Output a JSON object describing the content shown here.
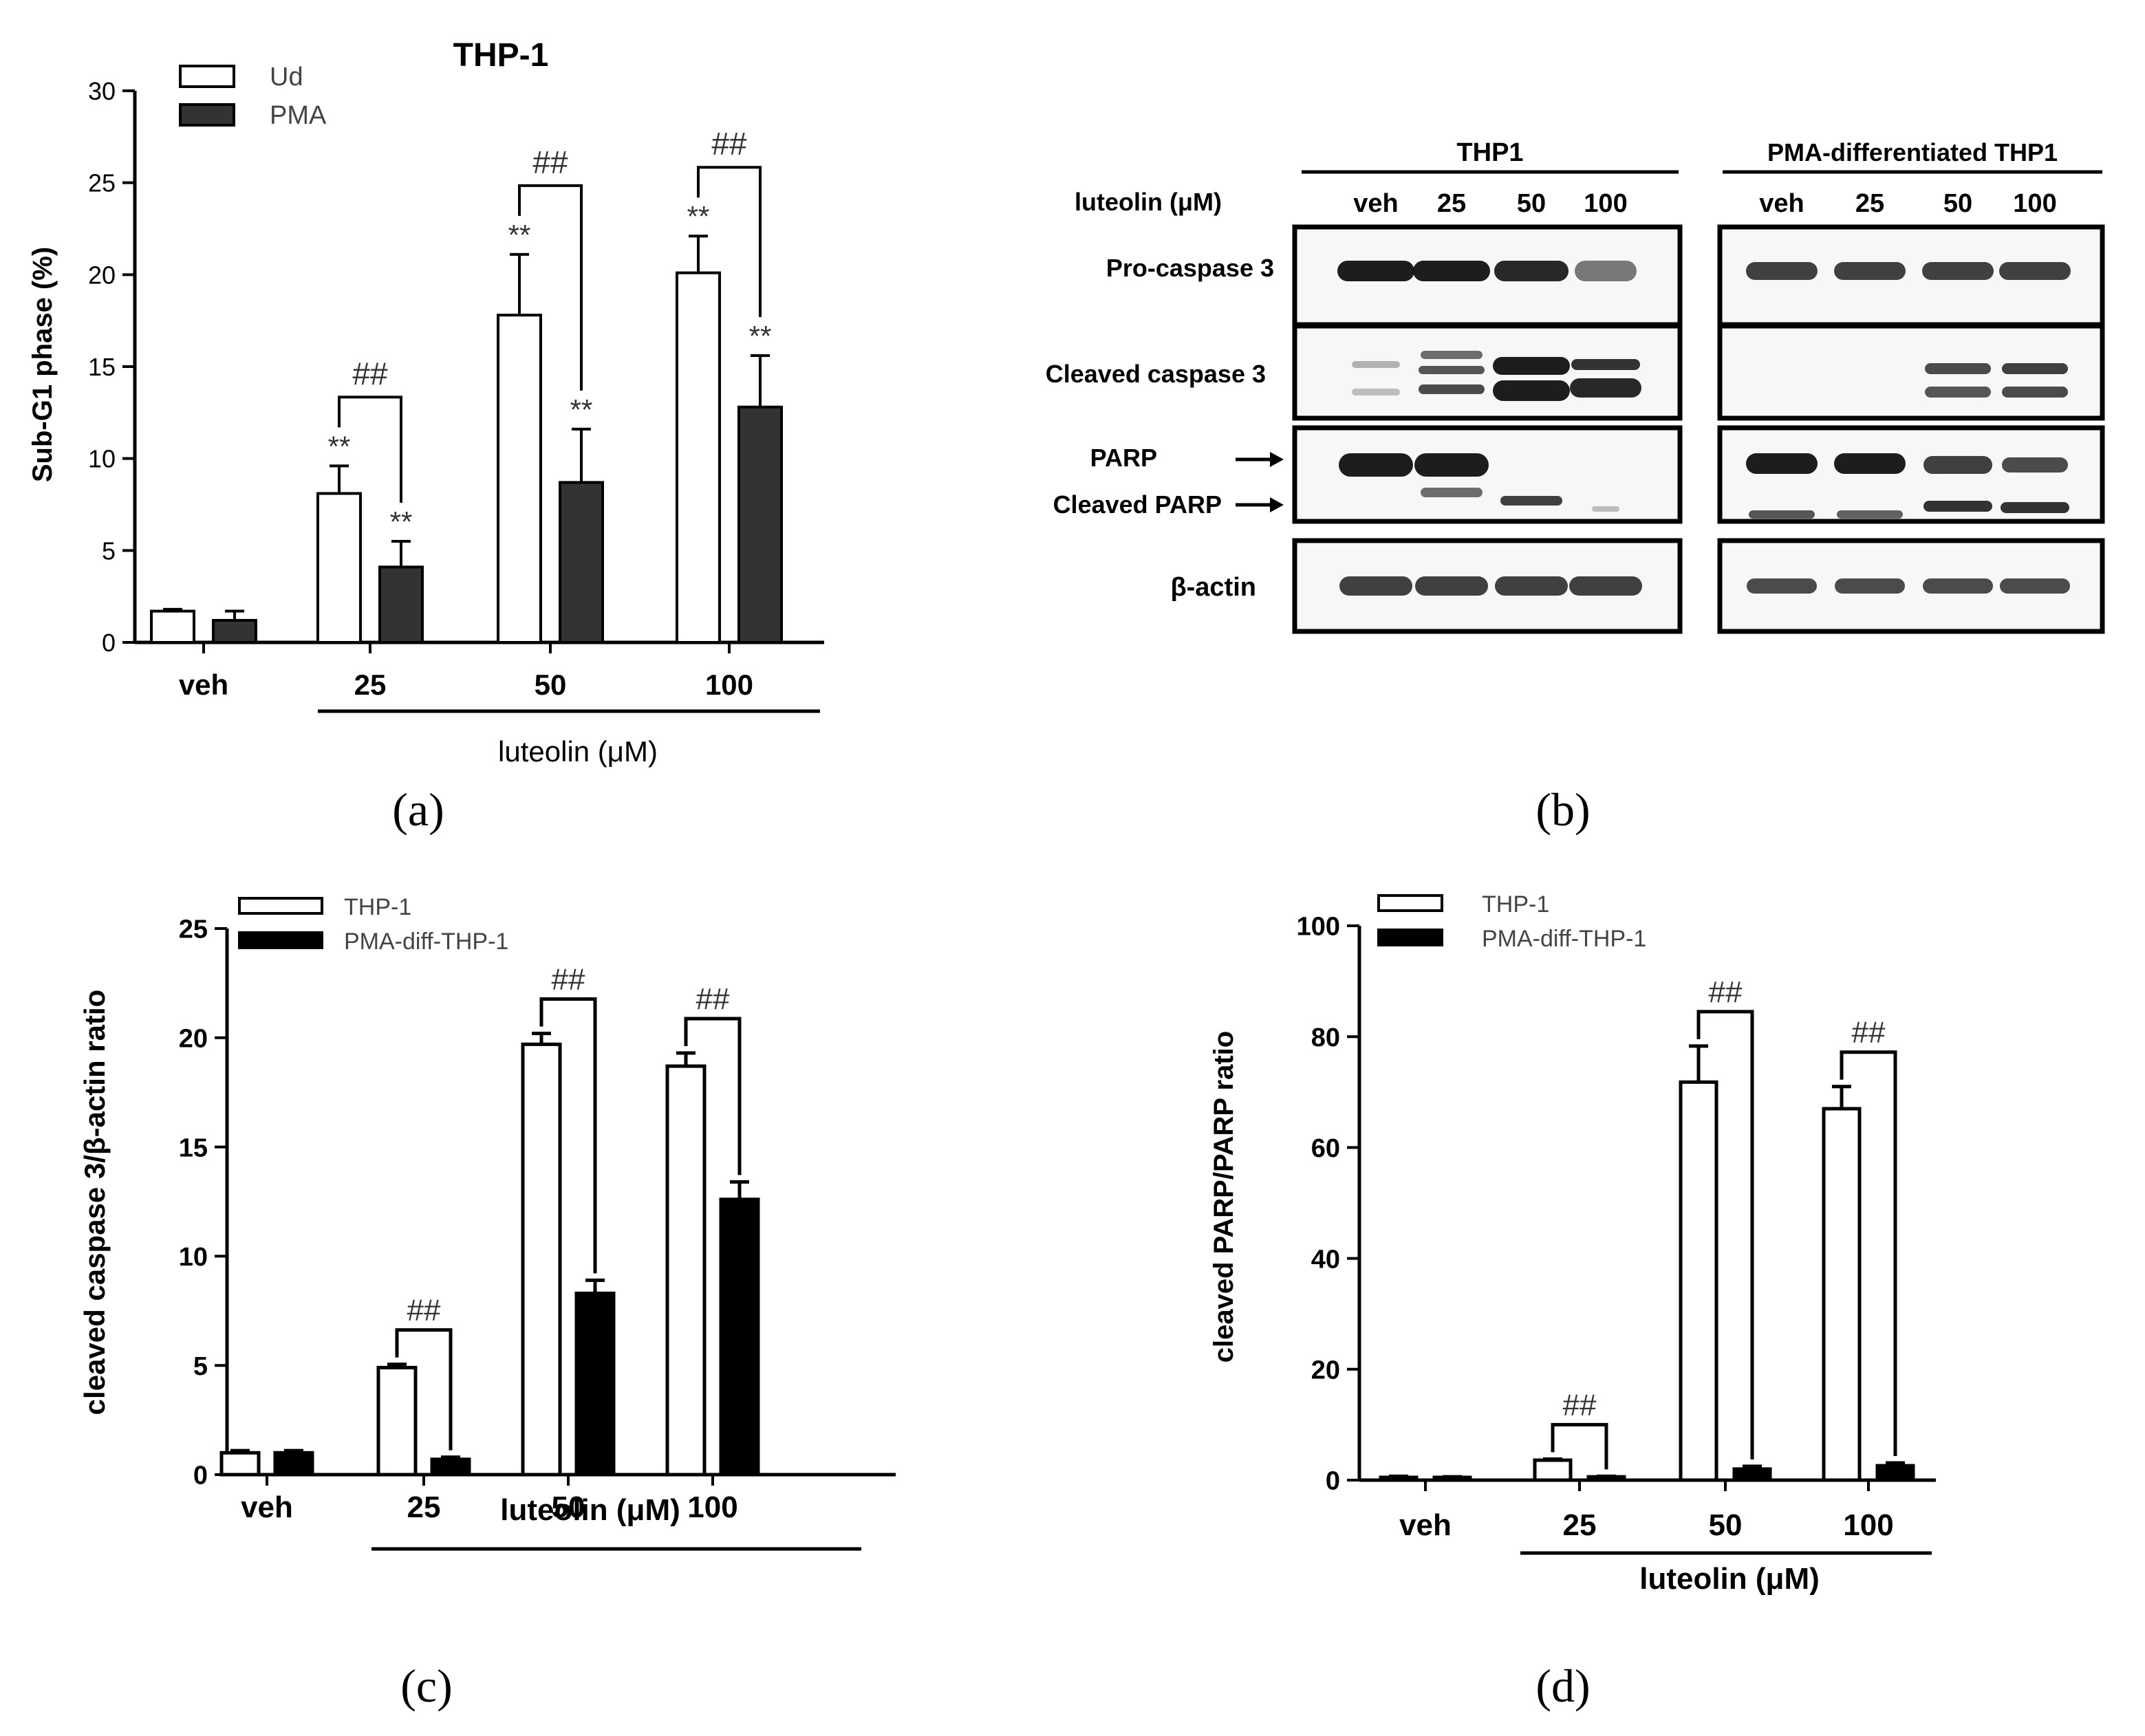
{
  "chart_data": [
    {
      "panel": "(a)",
      "type": "bar",
      "title": "THP-1",
      "ylabel": "Sub-G1 phase (%)",
      "xlabel": "luteolin (μM)",
      "ylim": [
        0,
        30
      ],
      "yticks": [
        "0",
        "5",
        "10",
        "15",
        "20",
        "25",
        "30"
      ],
      "categories": [
        "veh",
        "25",
        "50",
        "100"
      ],
      "legend_position": "top-left",
      "series": [
        {
          "name": "Ud",
          "fill": "#ffffff",
          "values": [
            1.7,
            8.1,
            17.8,
            20.1
          ],
          "errors": [
            0.1,
            1.5,
            3.3,
            2.0
          ]
        },
        {
          "name": "PMA",
          "fill": "#333333",
          "values": [
            1.2,
            4.1,
            8.7,
            12.8
          ],
          "errors": [
            0.5,
            1.4,
            2.9,
            2.8
          ]
        }
      ],
      "stars": [
        "",
        "**",
        "**",
        "**"
      ],
      "stars2": [
        "",
        "**",
        "**",
        "**"
      ],
      "hash": [
        "",
        "##",
        "##",
        "##"
      ]
    },
    {
      "panel": "(c)",
      "type": "bar",
      "ylabel": "cleaved caspase 3/β-actin ratio",
      "xlabel": "luteolin (μM)",
      "ylim": [
        0,
        25
      ],
      "yticks": [
        "0",
        "5",
        "10",
        "15",
        "20",
        "25"
      ],
      "categories": [
        "veh",
        "25",
        "50",
        "100"
      ],
      "legend_position": "top-left",
      "series": [
        {
          "name": "THP-1",
          "fill": "#ffffff",
          "values": [
            1.0,
            4.9,
            19.7,
            18.7
          ],
          "errors": [
            0.1,
            0.15,
            0.5,
            0.6
          ]
        },
        {
          "name": "PMA-diff-THP-1",
          "fill": "#000000",
          "values": [
            1.0,
            0.7,
            8.3,
            12.6
          ],
          "errors": [
            0.1,
            0.1,
            0.6,
            0.8
          ]
        }
      ],
      "hash": [
        "",
        "##",
        "##",
        "##"
      ]
    },
    {
      "panel": "(d)",
      "type": "bar",
      "ylabel": "cleaved PARP/PARP ratio",
      "xlabel": "luteolin (μM)",
      "ylim": [
        0,
        100
      ],
      "yticks": [
        "0",
        "20",
        "40",
        "60",
        "80",
        "100"
      ],
      "categories": [
        "veh",
        "25",
        "50",
        "100"
      ],
      "legend_position": "top-left",
      "series": [
        {
          "name": "THP-1",
          "fill": "#ffffff",
          "values": [
            0.5,
            3.6,
            71.8,
            67.0
          ],
          "errors": [
            0.2,
            0.2,
            6.5,
            4.0
          ]
        },
        {
          "name": "PMA-diff-THP-1",
          "fill": "#000000",
          "values": [
            0.5,
            0.6,
            2.0,
            2.6
          ],
          "errors": [
            0.1,
            0.1,
            0.5,
            0.5
          ]
        }
      ],
      "hash": [
        "",
        "##",
        "##",
        "##"
      ]
    }
  ],
  "blot": {
    "panel": "(b)",
    "group1": "THP1",
    "group2": "PMA-differentiated THP1",
    "lane_header": "luteolin (μM)",
    "lanes": [
      "veh",
      "25",
      "50",
      "100"
    ],
    "row_labels": [
      "Pro-caspase 3",
      "Cleaved caspase 3",
      "PARP",
      "Cleaved PARP",
      "β-actin"
    ]
  }
}
